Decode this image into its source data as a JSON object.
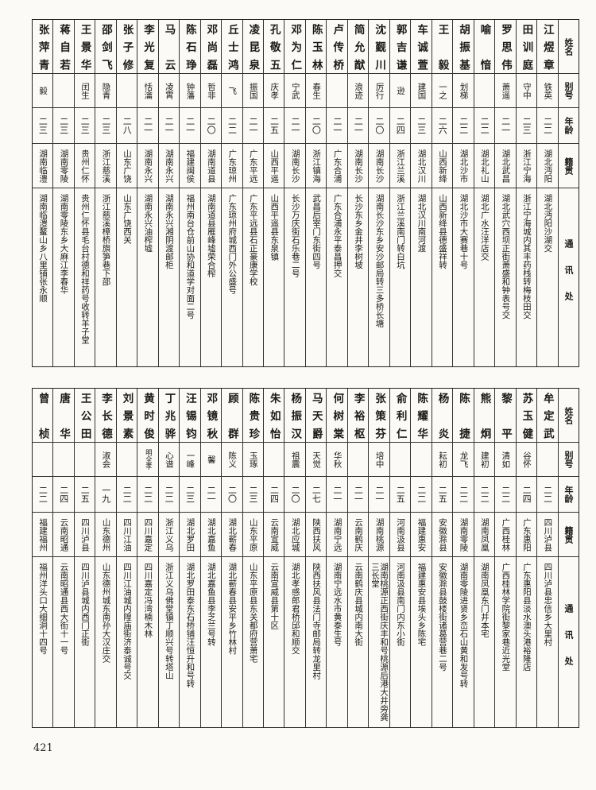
{
  "headers": {
    "name": "姓名",
    "alias": "别号",
    "age": "年龄",
    "origin": "籍贯",
    "address": "通讯处"
  },
  "top_rows": [
    {
      "name": "江煜章",
      "alias": "铁英",
      "age": "二二",
      "origin": "湖北沔阳",
      "address": "湖北沔阳沙湖交"
    },
    {
      "name": "田训庭",
      "alias": "守中",
      "age": "二三",
      "origin": "浙江宁海",
      "address": "浙江宁海城内其丰药栈转梅枝田交"
    },
    {
      "name": "罗思伟",
      "alias": "萧遥",
      "age": "二一",
      "origin": "湖北武昌",
      "address": "湖北武穴西坝正街萧盛和钟表号交"
    },
    {
      "name": "喻愔",
      "alias": "",
      "age": "二二",
      "origin": "湖北礼山",
      "address": "湖北广水汪洋店交"
    },
    {
      "name": "胡振基",
      "alias": "划梯",
      "age": "二二",
      "origin": "湖北沙市",
      "address": "湖北沙市大赛巷十号"
    },
    {
      "name": "王毅",
      "alias": "一之",
      "age": "二六",
      "origin": "山西新绛",
      "address": "山西新绛县德盛祥转"
    },
    {
      "name": "车诚萱",
      "alias": "建国",
      "age": "二三",
      "origin": "湖北汉川",
      "address": "湖北汉川南河渡"
    },
    {
      "name": "郭吉谦",
      "alias": "逊",
      "age": "二四",
      "origin": "浙江兰溪",
      "address": "浙江兰溪南门转白坑"
    },
    {
      "name": "沈觐川",
      "alias": "厉行",
      "age": "二〇",
      "origin": "湖南长沙",
      "address": "湖南长沙东乡安沙邮局转三多桥长塘"
    },
    {
      "name": "简允猷",
      "alias": "浪迹",
      "age": "二一",
      "origin": "湖南长沙",
      "address": "长沙东乡金井李树坡"
    },
    {
      "name": "卢传桥",
      "alias": "",
      "age": "二一",
      "origin": "广东合浦",
      "address": "广东合浦永平泰昌押交"
    },
    {
      "name": "陈玉林",
      "alias": "春生",
      "age": "二〇",
      "origin": "浙江镇海",
      "address": "武昌后宰门东街四号"
    },
    {
      "name": "邓为仁",
      "alias": "宁武",
      "age": "二一",
      "origin": "湖南长沙",
      "address": "长沙万庆街石乐巷二号"
    },
    {
      "name": "孔敬五",
      "alias": "庆孝",
      "age": "二五",
      "origin": "山西平遥",
      "address": "山西平遥县东泉镇"
    },
    {
      "name": "凌昆泉",
      "alias": "振国",
      "age": "二一",
      "origin": "广东平远",
      "address": "广东平远县石正豪康学校"
    },
    {
      "name": "丘士鸿",
      "alias": "飞",
      "age": "二二",
      "origin": "广东琼州",
      "address": "广东琼州府城西门外公盛号"
    },
    {
      "name": "邓尚磊",
      "alias": "哲非",
      "age": "二〇",
      "origin": "湖南道县",
      "address": "湖南道县雁峰墟荣合榨"
    },
    {
      "name": "陈石琤",
      "alias": "钟藩",
      "age": "二一",
      "origin": "福建闽侯",
      "address": "福州南台仓前山协和道学对面二号"
    },
    {
      "name": "马云",
      "alias": "凌霄",
      "age": "二一",
      "origin": "湖南永兴",
      "address": "湖南永兴湘阴渡邮柜"
    },
    {
      "name": "李光复",
      "alias": "恬瀹",
      "age": "二一",
      "origin": "湖南永兴",
      "address": "湖南永兴油榨墟"
    },
    {
      "name": "张子修",
      "alias": "",
      "age": "二八",
      "origin": "山东广饶",
      "address": "山东广饶西关"
    },
    {
      "name": "邵剑飞",
      "alias": "隐青",
      "age": "二三",
      "origin": "浙江慈溪",
      "address": "浙江慈溪樟桥旗笋巷下邵"
    },
    {
      "name": "王景华",
      "alias": "闰生",
      "age": "二三",
      "origin": "贵州仁怀",
      "address": "贵州仁怀县毛台村德和祥药号收转羊子堂"
    },
    {
      "name": "蒋自若",
      "alias": "",
      "age": "二三",
      "origin": "湖南零陵",
      "address": "湖南零陵东乡大麻江李春华"
    },
    {
      "name": "张萍青",
      "alias": "毅",
      "age": "二三",
      "origin": "湖南临澧",
      "address": "湖南临澧鳌山乡八里铺张永顺"
    }
  ],
  "bottom_rows": [
    {
      "name": "牟定武",
      "alias": "",
      "age": "二二",
      "origin": "四川泸县",
      "address": "四川泸县忠信乡大里村"
    },
    {
      "name": "苏玉健",
      "alias": "谷怀",
      "age": "二四",
      "origin": "广东惠阳",
      "address": "广东惠阳县淡水澳头港裕隆店"
    },
    {
      "name": "黎平",
      "alias": "清如",
      "age": "二二",
      "origin": "广西桂林",
      "address": "广西桂林学院街黎家巷近光堂"
    },
    {
      "name": "熊炯",
      "alias": "建初",
      "age": "二二",
      "origin": "湖南凤凰",
      "address": "湖南凤凰东门井本宅"
    },
    {
      "name": "陈捷",
      "alias": "龙飞",
      "age": "二二",
      "origin": "湖南零陵",
      "address": "湖南零陵进贤乡峦石山黄和发号转"
    },
    {
      "name": "杨炎",
      "alias": "耘初",
      "age": "二五",
      "origin": "安徽滁县",
      "address": "安徽滁县鼓楼街诸葛营巷二号"
    },
    {
      "name": "陈耀华",
      "alias": "",
      "age": "二二",
      "origin": "福建惠安",
      "address": "福建惠安县埃头乡陈宅"
    },
    {
      "name": "俞利仁",
      "alias": "",
      "age": "二五",
      "origin": "河南汲县",
      "address": "河南汲县南门内东小街"
    },
    {
      "name": "张策芬",
      "alias": "培中",
      "age": "二一",
      "origin": "湖南桃源",
      "address": "湖南桃源正西街庆丰和号桃源后港大井旁龚三长堂"
    },
    {
      "name": "李裕枢",
      "alias": "",
      "age": "二一",
      "origin": "云南鹤庆",
      "address": "云南鹤庆县城内南大街"
    },
    {
      "name": "何树棠",
      "alias": "华秋",
      "age": "二一",
      "origin": "湖南宁远",
      "address": "湖南宁远水市黄泰生号"
    },
    {
      "name": "马天爵",
      "alias": "天觉",
      "age": "二七",
      "origin": "陕西扶风",
      "address": "陕西扶风县法门寺邮局转龙里村"
    },
    {
      "name": "杨振汉",
      "alias": "祖震",
      "age": "二〇",
      "origin": "湖北应城",
      "address": "湖北孝感郎君桥邱和顺交"
    },
    {
      "name": "朱如怡",
      "alias": "",
      "age": "二四",
      "origin": "云南宣威",
      "address": "云南宣威县第十区"
    },
    {
      "name": "陈贵珍",
      "alias": "玉琢",
      "age": "二三",
      "origin": "山东平原",
      "address": "山东平原县东关都府营萧宅"
    },
    {
      "name": "顾群",
      "alias": "陈义",
      "age": "二〇",
      "origin": "湖北蕲春",
      "address": "湖北蕲春县安平乡竹林村"
    },
    {
      "name": "邓镜秋",
      "alias": "馨",
      "age": "二一",
      "origin": "湖北嘉鱼",
      "address": "湖北嘉鱼县李芝兰号转"
    },
    {
      "name": "汪锡钧",
      "alias": "一峰",
      "age": "二三",
      "origin": "湖北罗田",
      "address": "湖北罗田泰东石桥铺汪恒升和号转"
    },
    {
      "name": "丁兆骅",
      "alias": "心谱",
      "age": "二二",
      "origin": "浙江义乌",
      "address": "浙江义乌佛堂镇丁顺兴号转塔山"
    },
    {
      "name": "黄时俊",
      "alias": "明全孝",
      "age": "二二",
      "origin": "四川嘉定",
      "address": "四川嘉定冯湾楠木林"
    },
    {
      "name": "刘景素",
      "alias": "",
      "age": "二二",
      "origin": "四川江油",
      "address": "四川江油城内隍庙街济泰诚号交"
    },
    {
      "name": "李长德",
      "alias": "淑会",
      "age": "一九",
      "origin": "山东德州",
      "address": "山东德州城东南孙大汉庄交"
    },
    {
      "name": "王公田",
      "alias": "",
      "age": "二五",
      "origin": "四川泸县",
      "address": "四川泸县城内西门正街"
    },
    {
      "name": "唐华",
      "alias": "",
      "age": "二四",
      "origin": "云南昭通",
      "address": "云南昭通县西大街十一号"
    },
    {
      "name": "曾桢",
      "alias": "",
      "age": "二二",
      "origin": "福建福州",
      "address": "福州洋头口大细洞十四号"
    }
  ],
  "page_number": "421"
}
